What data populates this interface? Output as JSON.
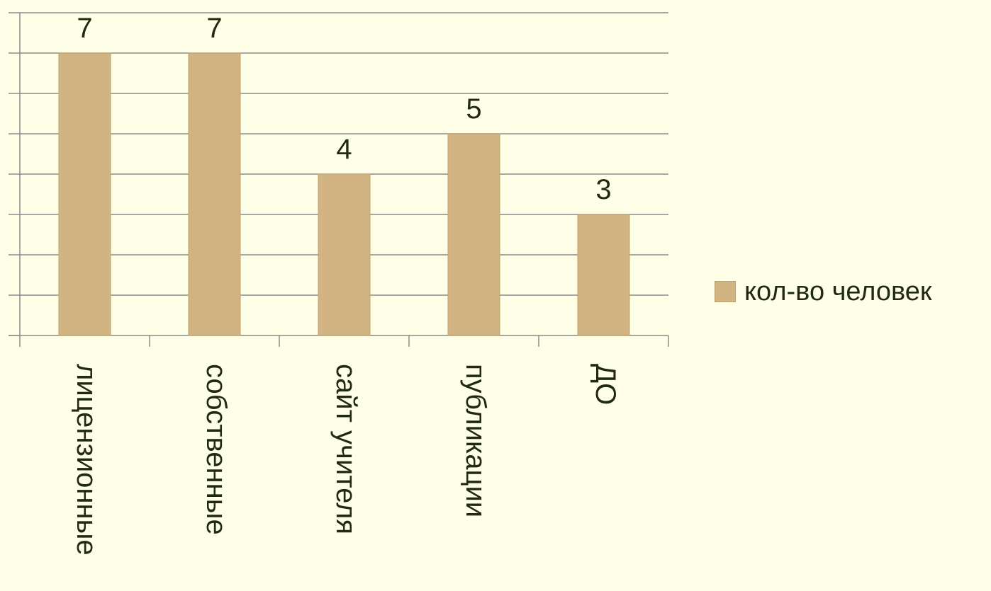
{
  "chart_data": {
    "type": "bar",
    "categories": [
      "лицензионные",
      "собственные",
      "сайт учителя",
      "публикации",
      "ДО"
    ],
    "series": [
      {
        "name": "кол-во человек",
        "values": [
          7,
          7,
          4,
          5,
          3
        ]
      }
    ],
    "data_labels": [
      "7",
      "7",
      "4",
      "5",
      "3"
    ],
    "title": "",
    "xlabel": "",
    "ylabel": "",
    "ylim": [
      0,
      8
    ],
    "grid": true,
    "legend_position": "right",
    "colors": {
      "bar": "#d2b483",
      "bar_border": "#bfa06c",
      "grid": "#8c8c8c",
      "axis": "#8c8c8c",
      "text": "#1f2a10",
      "background": "#ffffe8"
    }
  }
}
